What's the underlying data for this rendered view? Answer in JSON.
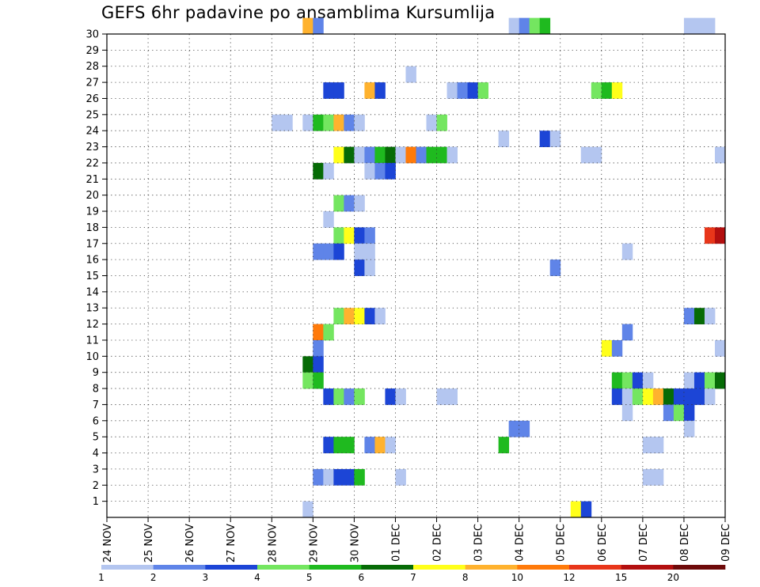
{
  "chart_data": {
    "type": "heatmap",
    "title": "GEFS 6hr padavine po ansamblima Kursumlija",
    "xlabel": "",
    "ylabel": "",
    "x_start": "24 NOV",
    "x_step_hours": 6,
    "x_count": 60,
    "x_tick_labels": [
      "24 NOV",
      "25 NOV",
      "26 NOV",
      "27 NOV",
      "28 NOV",
      "29 NOV",
      "30 NOV",
      "01 DEC",
      "02 DEC",
      "03 DEC",
      "04 DEC",
      "05 DEC",
      "06 DEC",
      "07 DEC",
      "08 DEC",
      "09 DEC"
    ],
    "y_ticks": [
      1,
      2,
      3,
      4,
      5,
      6,
      7,
      8,
      9,
      10,
      11,
      12,
      13,
      14,
      15,
      16,
      17,
      18,
      19,
      20,
      21,
      22,
      23,
      24,
      25,
      26,
      27,
      28,
      29,
      30
    ],
    "ylim": [
      0,
      30
    ],
    "grid": true,
    "colorbar": {
      "bounds": [
        1,
        2,
        3,
        4,
        5,
        6,
        7,
        8,
        10,
        12,
        15,
        20
      ],
      "colors": [
        "#b4c6f0",
        "#5f84e8",
        "#1c45d6",
        "#74e660",
        "#1fba1f",
        "#066b06",
        "#ffff1a",
        "#ffb22e",
        "#ff7a0a",
        "#e8361a",
        "#b30f0f",
        "#6e0a0a"
      ]
    },
    "cells": [
      {
        "member": 30,
        "step": 19,
        "value": 9
      },
      {
        "member": 30,
        "step": 20,
        "value": 2
      },
      {
        "member": 30,
        "step": 39,
        "value": 1
      },
      {
        "member": 30,
        "step": 40,
        "value": 2
      },
      {
        "member": 30,
        "step": 41,
        "value": 4
      },
      {
        "member": 30,
        "step": 42,
        "value": 5
      },
      {
        "member": 30,
        "step": 56,
        "value": 1
      },
      {
        "member": 30,
        "step": 57,
        "value": 1
      },
      {
        "member": 30,
        "step": 58,
        "value": 1
      },
      {
        "member": 27,
        "step": 29,
        "value": 1
      },
      {
        "member": 26,
        "step": 21,
        "value": 3
      },
      {
        "member": 26,
        "step": 22,
        "value": 3
      },
      {
        "member": 26,
        "step": 25,
        "value": 9
      },
      {
        "member": 26,
        "step": 26,
        "value": 3
      },
      {
        "member": 26,
        "step": 33,
        "value": 1
      },
      {
        "member": 26,
        "step": 34,
        "value": 2
      },
      {
        "member": 26,
        "step": 35,
        "value": 3
      },
      {
        "member": 26,
        "step": 36,
        "value": 4
      },
      {
        "member": 26,
        "step": 47,
        "value": 4
      },
      {
        "member": 26,
        "step": 48,
        "value": 5
      },
      {
        "member": 26,
        "step": 49,
        "value": 7
      },
      {
        "member": 24,
        "step": 16,
        "value": 1
      },
      {
        "member": 24,
        "step": 17,
        "value": 1
      },
      {
        "member": 24,
        "step": 19,
        "value": 1
      },
      {
        "member": 24,
        "step": 20,
        "value": 5
      },
      {
        "member": 24,
        "step": 21,
        "value": 4
      },
      {
        "member": 24,
        "step": 22,
        "value": 9
      },
      {
        "member": 24,
        "step": 23,
        "value": 2
      },
      {
        "member": 24,
        "step": 24,
        "value": 1
      },
      {
        "member": 24,
        "step": 31,
        "value": 1
      },
      {
        "member": 24,
        "step": 32,
        "value": 4
      },
      {
        "member": 23,
        "step": 38,
        "value": 1
      },
      {
        "member": 23,
        "step": 42,
        "value": 3
      },
      {
        "member": 23,
        "step": 43,
        "value": 1
      },
      {
        "member": 22,
        "step": 22,
        "value": 7
      },
      {
        "member": 22,
        "step": 23,
        "value": 6
      },
      {
        "member": 22,
        "step": 24,
        "value": 1
      },
      {
        "member": 22,
        "step": 25,
        "value": 2
      },
      {
        "member": 22,
        "step": 26,
        "value": 5
      },
      {
        "member": 22,
        "step": 27,
        "value": 6
      },
      {
        "member": 22,
        "step": 28,
        "value": 1
      },
      {
        "member": 22,
        "step": 29,
        "value": 10
      },
      {
        "member": 22,
        "step": 30,
        "value": 2
      },
      {
        "member": 22,
        "step": 31,
        "value": 5
      },
      {
        "member": 22,
        "step": 32,
        "value": 5
      },
      {
        "member": 22,
        "step": 33,
        "value": 1
      },
      {
        "member": 22,
        "step": 46,
        "value": 1
      },
      {
        "member": 22,
        "step": 47,
        "value": 1
      },
      {
        "member": 22,
        "step": 59,
        "value": 1
      },
      {
        "member": 21,
        "step": 20,
        "value": 6
      },
      {
        "member": 21,
        "step": 21,
        "value": 1
      },
      {
        "member": 21,
        "step": 25,
        "value": 1
      },
      {
        "member": 21,
        "step": 26,
        "value": 2
      },
      {
        "member": 21,
        "step": 27,
        "value": 3
      },
      {
        "member": 19,
        "step": 22,
        "value": 4
      },
      {
        "member": 19,
        "step": 23,
        "value": 2
      },
      {
        "member": 19,
        "step": 24,
        "value": 1
      },
      {
        "member": 18,
        "step": 21,
        "value": 1
      },
      {
        "member": 17,
        "step": 22,
        "value": 4
      },
      {
        "member": 17,
        "step": 23,
        "value": 7
      },
      {
        "member": 17,
        "step": 24,
        "value": 3
      },
      {
        "member": 17,
        "step": 25,
        "value": 2
      },
      {
        "member": 17,
        "step": 58,
        "value": 12
      },
      {
        "member": 17,
        "step": 59,
        "value": 15
      },
      {
        "member": 16,
        "step": 20,
        "value": 2
      },
      {
        "member": 16,
        "step": 21,
        "value": 2
      },
      {
        "member": 16,
        "step": 22,
        "value": 3
      },
      {
        "member": 16,
        "step": 24,
        "value": 1
      },
      {
        "member": 16,
        "step": 25,
        "value": 1
      },
      {
        "member": 16,
        "step": 50,
        "value": 1
      },
      {
        "member": 15,
        "step": 24,
        "value": 3
      },
      {
        "member": 15,
        "step": 25,
        "value": 1
      },
      {
        "member": 15,
        "step": 43,
        "value": 2
      },
      {
        "member": 12,
        "step": 22,
        "value": 4
      },
      {
        "member": 12,
        "step": 23,
        "value": 9
      },
      {
        "member": 12,
        "step": 24,
        "value": 7
      },
      {
        "member": 12,
        "step": 25,
        "value": 3
      },
      {
        "member": 12,
        "step": 26,
        "value": 1
      },
      {
        "member": 12,
        "step": 56,
        "value": 2
      },
      {
        "member": 12,
        "step": 57,
        "value": 6
      },
      {
        "member": 12,
        "step": 58,
        "value": 1
      },
      {
        "member": 11,
        "step": 20,
        "value": 10
      },
      {
        "member": 11,
        "step": 21,
        "value": 4
      },
      {
        "member": 11,
        "step": 50,
        "value": 2
      },
      {
        "member": 10,
        "step": 20,
        "value": 2
      },
      {
        "member": 10,
        "step": 48,
        "value": 7
      },
      {
        "member": 10,
        "step": 49,
        "value": 2
      },
      {
        "member": 10,
        "step": 59,
        "value": 1
      },
      {
        "member": 9,
        "step": 19,
        "value": 6
      },
      {
        "member": 9,
        "step": 20,
        "value": 3
      },
      {
        "member": 8,
        "step": 19,
        "value": 4
      },
      {
        "member": 8,
        "step": 20,
        "value": 5
      },
      {
        "member": 8,
        "step": 49,
        "value": 5
      },
      {
        "member": 8,
        "step": 50,
        "value": 4
      },
      {
        "member": 8,
        "step": 51,
        "value": 3
      },
      {
        "member": 8,
        "step": 52,
        "value": 1
      },
      {
        "member": 8,
        "step": 56,
        "value": 1
      },
      {
        "member": 8,
        "step": 57,
        "value": 3
      },
      {
        "member": 8,
        "step": 58,
        "value": 4
      },
      {
        "member": 8,
        "step": 59,
        "value": 6
      },
      {
        "member": 7,
        "step": 21,
        "value": 3
      },
      {
        "member": 7,
        "step": 22,
        "value": 4
      },
      {
        "member": 7,
        "step": 23,
        "value": 2
      },
      {
        "member": 7,
        "step": 24,
        "value": 4
      },
      {
        "member": 7,
        "step": 27,
        "value": 3
      },
      {
        "member": 7,
        "step": 28,
        "value": 1
      },
      {
        "member": 7,
        "step": 32,
        "value": 1
      },
      {
        "member": 7,
        "step": 33,
        "value": 1
      },
      {
        "member": 7,
        "step": 49,
        "value": 3
      },
      {
        "member": 7,
        "step": 50,
        "value": 1
      },
      {
        "member": 7,
        "step": 51,
        "value": 4
      },
      {
        "member": 7,
        "step": 52,
        "value": 7
      },
      {
        "member": 7,
        "step": 53,
        "value": 9
      },
      {
        "member": 7,
        "step": 54,
        "value": 6
      },
      {
        "member": 7,
        "step": 55,
        "value": 3
      },
      {
        "member": 7,
        "step": 56,
        "value": 3
      },
      {
        "member": 7,
        "step": 57,
        "value": 3
      },
      {
        "member": 7,
        "step": 58,
        "value": 1
      },
      {
        "member": 6,
        "step": 50,
        "value": 1
      },
      {
        "member": 6,
        "step": 54,
        "value": 2
      },
      {
        "member": 6,
        "step": 55,
        "value": 4
      },
      {
        "member": 6,
        "step": 56,
        "value": 3
      },
      {
        "member": 5,
        "step": 39,
        "value": 2
      },
      {
        "member": 5,
        "step": 40,
        "value": 2
      },
      {
        "member": 5,
        "step": 56,
        "value": 1
      },
      {
        "member": 4,
        "step": 21,
        "value": 3
      },
      {
        "member": 4,
        "step": 22,
        "value": 5
      },
      {
        "member": 4,
        "step": 23,
        "value": 5
      },
      {
        "member": 4,
        "step": 25,
        "value": 2
      },
      {
        "member": 4,
        "step": 26,
        "value": 9
      },
      {
        "member": 4,
        "step": 27,
        "value": 1
      },
      {
        "member": 4,
        "step": 38,
        "value": 5
      },
      {
        "member": 4,
        "step": 52,
        "value": 1
      },
      {
        "member": 4,
        "step": 53,
        "value": 1
      },
      {
        "member": 2,
        "step": 20,
        "value": 2
      },
      {
        "member": 2,
        "step": 21,
        "value": 1
      },
      {
        "member": 2,
        "step": 22,
        "value": 3
      },
      {
        "member": 2,
        "step": 23,
        "value": 3
      },
      {
        "member": 2,
        "step": 24,
        "value": 5
      },
      {
        "member": 2,
        "step": 28,
        "value": 1
      },
      {
        "member": 2,
        "step": 52,
        "value": 1
      },
      {
        "member": 2,
        "step": 53,
        "value": 1
      },
      {
        "member": 0,
        "step": 19,
        "value": 1
      },
      {
        "member": 0,
        "step": 45,
        "value": 7
      },
      {
        "member": 0,
        "step": 46,
        "value": 3
      }
    ]
  }
}
